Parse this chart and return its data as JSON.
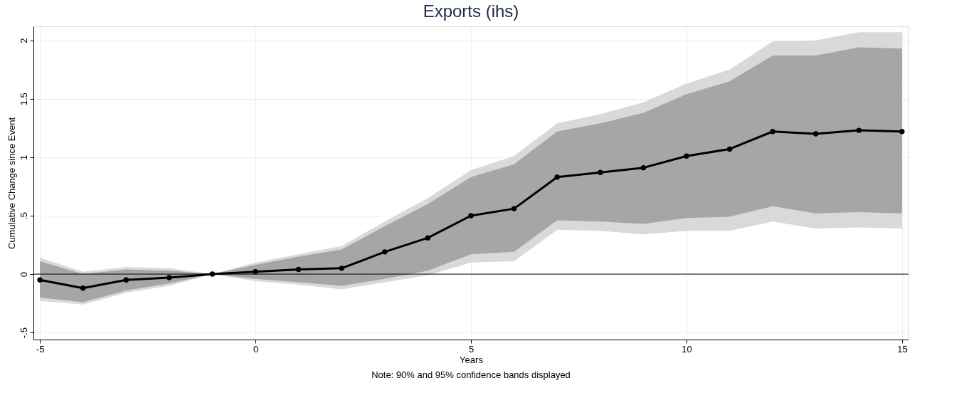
{
  "chart_data": {
    "type": "line",
    "title": "Exports (ihs)",
    "xlabel": "Years",
    "ylabel": "Cumulative Change since Event",
    "annotations": [
      "Note: 90% and 95% confidence bands displayed"
    ],
    "x": [
      -5,
      -4,
      -3,
      -2,
      -1,
      0,
      1,
      2,
      3,
      4,
      5,
      6,
      7,
      8,
      9,
      10,
      11,
      12,
      13,
      14,
      15
    ],
    "series": [
      {
        "color": "#000000",
        "values": [
          -0.05,
          -0.12,
          -0.05,
          -0.03,
          0,
          0.02,
          0.04,
          0.05,
          0.19,
          0.31,
          0.5,
          0.56,
          0.83,
          0.87,
          0.91,
          1.01,
          1.07,
          1.22,
          1.2,
          1.23,
          1.22
        ],
        "lower": [
          -0.2,
          -0.24,
          -0.14,
          -0.08,
          0,
          -0.04,
          -0.07,
          -0.1,
          -0.04,
          0.03,
          0.17,
          0.19,
          0.46,
          0.45,
          0.43,
          0.48,
          0.49,
          0.58,
          0.52,
          0.53,
          0.52
        ],
        "upper": [
          0.11,
          0.0,
          0.04,
          0.03,
          0,
          0.08,
          0.15,
          0.21,
          0.41,
          0.6,
          0.83,
          0.94,
          1.22,
          1.29,
          1.38,
          1.54,
          1.65,
          1.87,
          1.87,
          1.94,
          1.93
        ]
      },
      {
        "color": "#d9d9d9",
        "values": [
          null,
          null,
          null,
          null,
          null,
          null,
          null,
          null,
          null,
          null,
          null,
          null,
          null,
          null,
          null,
          null,
          null,
          null,
          null,
          null,
          null
        ],
        "lower": [
          -0.23,
          -0.26,
          -0.16,
          -0.1,
          0,
          -0.06,
          -0.09,
          -0.13,
          -0.07,
          -0.01,
          0.1,
          0.11,
          0.38,
          0.37,
          0.34,
          0.37,
          0.37,
          0.45,
          0.39,
          0.4,
          0.39
        ],
        "upper": [
          0.14,
          0.02,
          0.06,
          0.05,
          0,
          0.1,
          0.17,
          0.24,
          0.45,
          0.65,
          0.89,
          1.01,
          1.29,
          1.37,
          1.47,
          1.63,
          1.75,
          1.99,
          2.0,
          2.07,
          2.07
        ]
      }
    ],
    "xlim": [
      -5.15,
      15.15
    ],
    "xticks": [
      -5,
      0,
      5,
      10,
      15
    ],
    "ylim": [
      -0.56,
      2.12
    ],
    "yticks": [
      {
        "value": -0.5,
        "label": "-.5"
      },
      0,
      {
        "value": 0.5,
        "label": ".5"
      },
      1,
      {
        "value": 1.5,
        "label": "1.5"
      },
      2
    ],
    "ref_lines": [
      {
        "axis": "y",
        "value": 0,
        "color": "#000000"
      }
    ],
    "grid": true,
    "marker": "circle",
    "line_style": "solid"
  }
}
